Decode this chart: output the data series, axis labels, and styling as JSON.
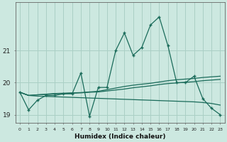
{
  "xlabel": "Humidex (Indice chaleur)",
  "bg_color": "#cce8e0",
  "line_color": "#1a6b5a",
  "grid_color": "#aacfc5",
  "x_values": [
    0,
    1,
    2,
    3,
    4,
    5,
    6,
    7,
    8,
    9,
    10,
    11,
    12,
    13,
    14,
    15,
    16,
    17,
    18,
    19,
    20,
    21,
    22,
    23
  ],
  "main_y": [
    19.7,
    19.15,
    19.45,
    19.6,
    19.6,
    19.65,
    19.65,
    20.3,
    18.95,
    19.85,
    19.85,
    21.0,
    21.55,
    20.85,
    21.1,
    21.8,
    22.05,
    21.15,
    20.0,
    20.0,
    20.2,
    19.5,
    19.2,
    19.0
  ],
  "trend_up1": [
    19.7,
    19.6,
    19.62,
    19.64,
    19.66,
    19.67,
    19.68,
    19.69,
    19.71,
    19.73,
    19.78,
    19.83,
    19.88,
    19.92,
    19.95,
    19.98,
    20.02,
    20.06,
    20.09,
    20.11,
    20.13,
    20.16,
    20.18,
    20.2
  ],
  "trend_up2": [
    19.7,
    19.6,
    19.62,
    19.63,
    19.65,
    19.66,
    19.67,
    19.68,
    19.7,
    19.71,
    19.74,
    19.77,
    19.8,
    19.84,
    19.87,
    19.9,
    19.94,
    19.97,
    19.99,
    20.01,
    20.03,
    20.06,
    20.08,
    20.1
  ],
  "trend_down": [
    19.7,
    19.6,
    19.58,
    19.57,
    19.56,
    19.55,
    19.54,
    19.53,
    19.52,
    19.51,
    19.5,
    19.49,
    19.48,
    19.47,
    19.46,
    19.45,
    19.44,
    19.43,
    19.42,
    19.41,
    19.4,
    19.38,
    19.35,
    19.3
  ],
  "yticks": [
    19,
    20,
    21
  ],
  "ylim": [
    18.75,
    22.5
  ],
  "xlim": [
    -0.5,
    23.5
  ]
}
